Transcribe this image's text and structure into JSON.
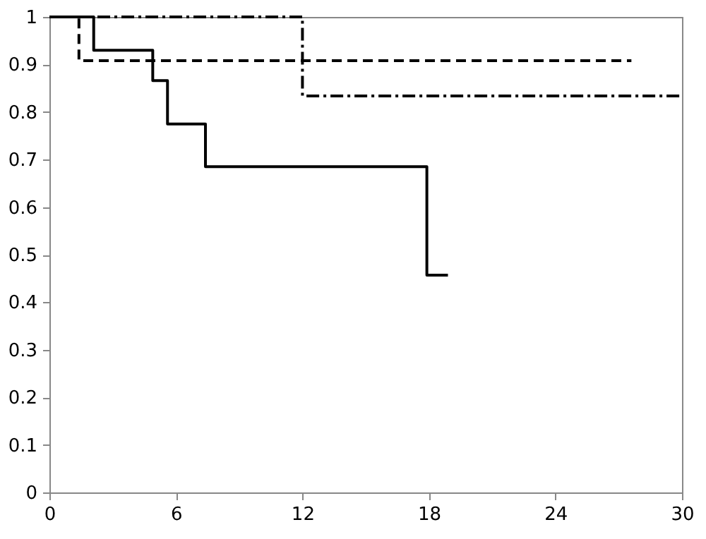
{
  "chart_data": {
    "type": "step",
    "xlim": [
      0,
      30
    ],
    "xticks": [
      0,
      6,
      12,
      18,
      24,
      30
    ],
    "ylim": [
      0,
      1
    ],
    "yticks": [
      0,
      0.1,
      0.2,
      0.3,
      0.4,
      0.5,
      0.6,
      0.7,
      0.8,
      0.9,
      1
    ],
    "grid": false,
    "marker": "none",
    "series": [
      {
        "color": "#000000",
        "line_style": "solid",
        "x": [
          0,
          2.1,
          4.9,
          5.6,
          7.4,
          17.9,
          18.9
        ],
        "values": [
          1,
          0.93,
          0.866,
          0.775,
          0.685,
          0.457,
          0.457
        ]
      },
      {
        "color": "#000000",
        "line_style": "dashed",
        "x": [
          0,
          1.4,
          27.6
        ],
        "values": [
          1,
          0.908,
          0.908
        ]
      },
      {
        "color": "#000000",
        "line_style": "dashdot",
        "x": [
          0,
          12,
          30
        ],
        "values": [
          1,
          0.834,
          0.834
        ]
      }
    ]
  }
}
